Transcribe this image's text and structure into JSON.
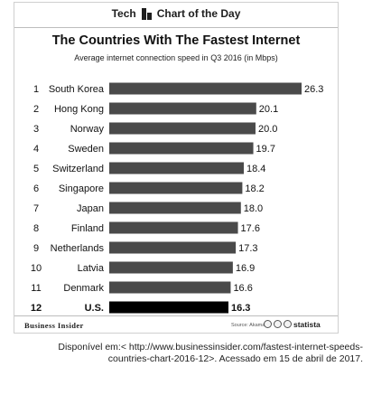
{
  "header": {
    "left_label": "Tech",
    "right_label": "Chart of the Day"
  },
  "footer": {
    "brand_left": "Business Insider",
    "source": "Source: Akamai",
    "brand_right": "statista"
  },
  "caption": "Disponível em:< http://www.businessinsider.com/fastest-internet-speeds-countries-chart-2016-12>. Acessado em 15 de abril de 2017.",
  "colors": {
    "bar": "#4a4a4a",
    "highlight_bar": "#000000",
    "text": "#111111"
  },
  "chart_data": {
    "type": "bar",
    "orientation": "horizontal",
    "title": "The Countries With The Fastest Internet",
    "subtitle": "Average internet connection speed in Q3 2016 (in Mbps)",
    "ranks": [
      "1",
      "2",
      "3",
      "4",
      "5",
      "6",
      "7",
      "8",
      "9",
      "10",
      "11",
      "12"
    ],
    "categories": [
      "South Korea",
      "Hong Kong",
      "Norway",
      "Sweden",
      "Switzerland",
      "Singapore",
      "Japan",
      "Finland",
      "Netherlands",
      "Latvia",
      "Denmark",
      "U.S."
    ],
    "values": [
      26.3,
      20.1,
      20.0,
      19.7,
      18.4,
      18.2,
      18.0,
      17.6,
      17.3,
      16.9,
      16.6,
      16.3
    ],
    "value_labels": [
      "26.3",
      "20.1",
      "20.0",
      "19.7",
      "18.4",
      "18.2",
      "18.0",
      "17.6",
      "17.3",
      "16.9",
      "16.6",
      "16.3"
    ],
    "highlight": "U.S.",
    "xlim": [
      0,
      26.3
    ],
    "grid": false,
    "legend": "none"
  }
}
